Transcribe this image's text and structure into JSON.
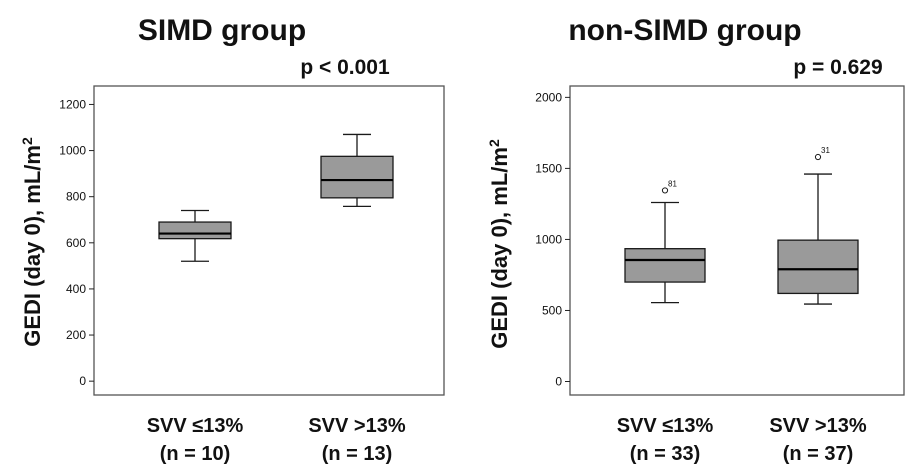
{
  "chart_data": [
    {
      "type": "box",
      "title": "SIMD group",
      "annotation": "p < 0.001",
      "ylabel": "GEDI (day 0), mL/m",
      "ylabel_sup": "2",
      "ylim": [
        -60,
        1280
      ],
      "yticks": [
        0,
        200,
        400,
        600,
        800,
        1000,
        1200
      ],
      "categories": [
        {
          "line1": "SVV ≤13%",
          "line2": "(n = 10)"
        },
        {
          "line1": "SVV >13%",
          "line2": "(n = 13)"
        }
      ],
      "boxes": [
        {
          "whisker_low": 520,
          "q1": 618,
          "median": 640,
          "q3": 690,
          "whisker_high": 740,
          "outliers": []
        },
        {
          "whisker_low": 758,
          "q1": 795,
          "median": 872,
          "q3": 975,
          "whisker_high": 1070,
          "outliers": []
        }
      ]
    },
    {
      "type": "box",
      "title": "non-SIMD group",
      "annotation": "p = 0.629",
      "ylabel": "GEDI (day 0), mL/m",
      "ylabel_sup": "2",
      "ylim": [
        -95,
        2080
      ],
      "yticks": [
        0,
        500,
        1000,
        1500,
        2000
      ],
      "categories": [
        {
          "line1": "SVV ≤13%",
          "line2": "(n = 33)"
        },
        {
          "line1": "SVV >13%",
          "line2": "(n = 37)"
        }
      ],
      "boxes": [
        {
          "whisker_low": 555,
          "q1": 700,
          "median": 855,
          "q3": 935,
          "whisker_high": 1260,
          "outliers": [
            {
              "value": 1345,
              "label": "81"
            }
          ]
        },
        {
          "whisker_low": 545,
          "q1": 620,
          "median": 790,
          "q3": 995,
          "whisker_high": 1460,
          "outliers": [
            {
              "value": 1580,
              "label": "31"
            }
          ]
        }
      ]
    }
  ],
  "style": {
    "box_fill": "#9a9a9a",
    "stroke": "#1a1a1a",
    "frame": "#555555"
  }
}
